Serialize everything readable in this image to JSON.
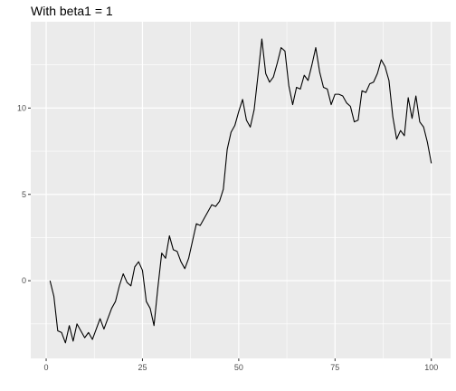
{
  "chart_data": {
    "type": "line",
    "title": "With beta1 = 1",
    "xlabel": "",
    "ylabel": "",
    "xlim": [
      -4,
      105
    ],
    "ylim": [
      -4.5,
      15
    ],
    "x_ticks": [
      0,
      25,
      50,
      75,
      100
    ],
    "y_ticks": [
      0,
      5,
      10
    ],
    "grid": true,
    "legend": "none",
    "colors": {
      "panel": "#ebebeb",
      "grid": "#ffffff",
      "line": "#000000",
      "tick_text": "#4d4d4d"
    },
    "series": [
      {
        "x": [
          1,
          2,
          3,
          4,
          5,
          6,
          7,
          8,
          9,
          10,
          11,
          12,
          13,
          14,
          15,
          16,
          17,
          18,
          19,
          20,
          21,
          22,
          23,
          24,
          25,
          26,
          27,
          28,
          29,
          30,
          31,
          32,
          33,
          34,
          35,
          36,
          37,
          38,
          39,
          40,
          41,
          42,
          43,
          44,
          45,
          46,
          47,
          48,
          49,
          50,
          51,
          52,
          53,
          54,
          55,
          56,
          57,
          58,
          59,
          60,
          61,
          62,
          63,
          64,
          65,
          66,
          67,
          68,
          69,
          70,
          71,
          72,
          73,
          74,
          75,
          76,
          77,
          78,
          79,
          80,
          81,
          82,
          83,
          84,
          85,
          86,
          87,
          88,
          89,
          90,
          91,
          92,
          93,
          94,
          95,
          96,
          97,
          98,
          99,
          100
        ],
        "y": [
          0.0,
          -0.9,
          -2.9,
          -3.0,
          -3.6,
          -2.6,
          -3.5,
          -2.5,
          -2.9,
          -3.3,
          -3.0,
          -3.4,
          -2.8,
          -2.2,
          -2.8,
          -2.2,
          -1.6,
          -1.2,
          -0.3,
          0.4,
          -0.1,
          -0.3,
          0.8,
          1.1,
          0.6,
          -1.2,
          -1.6,
          -2.6,
          -0.4,
          1.6,
          1.3,
          2.6,
          1.8,
          1.7,
          1.1,
          0.7,
          1.3,
          2.3,
          3.3,
          3.2,
          3.6,
          4.0,
          4.4,
          4.3,
          4.6,
          5.3,
          7.6,
          8.6,
          9.0,
          9.8,
          10.5,
          9.3,
          8.9,
          9.9,
          11.9,
          14.0,
          12.0,
          11.5,
          11.8,
          12.6,
          13.5,
          13.3,
          11.3,
          10.2,
          11.2,
          11.1,
          11.9,
          11.6,
          12.5,
          13.5,
          12.1,
          11.2,
          11.1,
          10.2,
          10.8,
          10.8,
          10.7,
          10.3,
          10.1,
          9.2,
          9.3,
          11.0,
          10.9,
          11.4,
          11.5,
          12.0,
          12.8,
          12.4,
          11.6,
          9.5,
          8.2,
          8.7,
          8.4,
          10.6,
          9.4,
          10.7,
          9.2,
          8.9,
          8.0,
          6.8
        ]
      }
    ]
  }
}
